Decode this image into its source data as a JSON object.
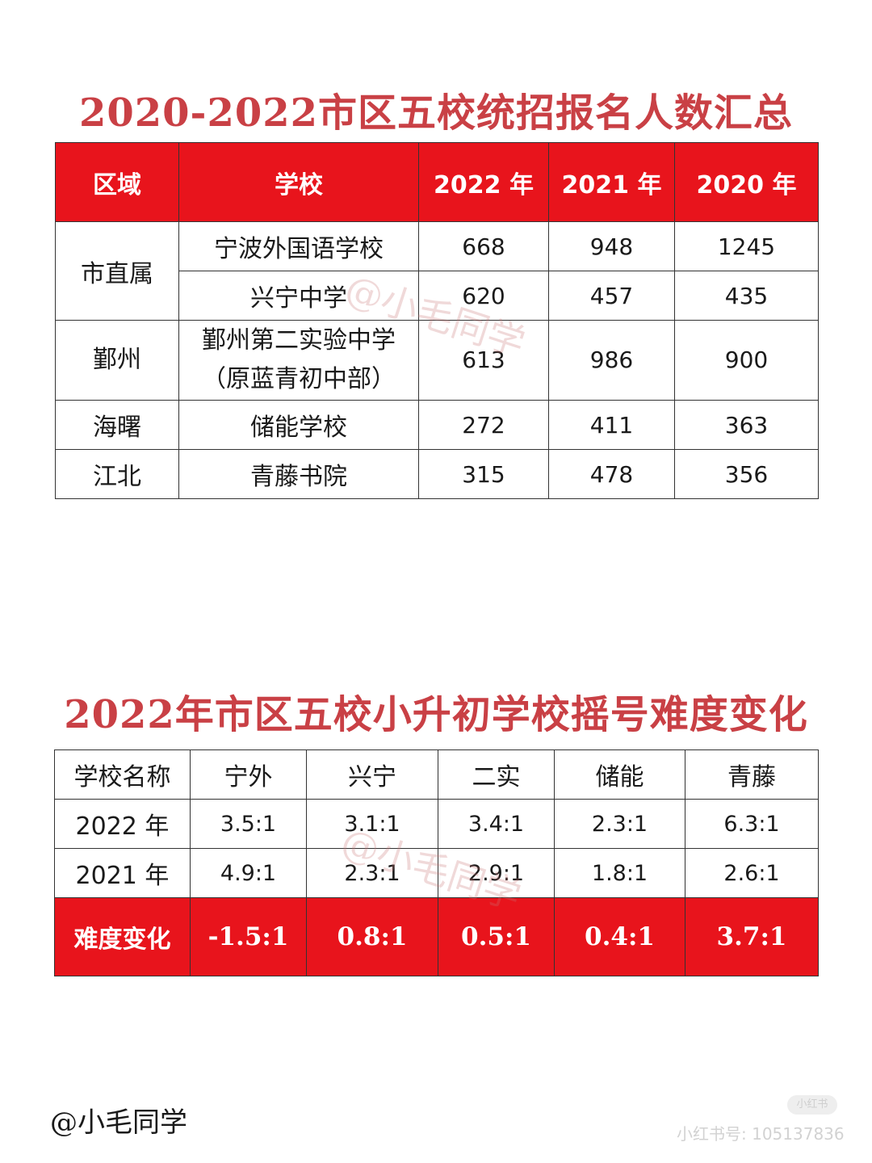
{
  "table1": {
    "title": "2020-2022市区五校统招报名人数汇总",
    "headers": [
      "区域",
      "学校",
      "2022 年",
      "2021 年",
      "2020 年"
    ],
    "groups": [
      {
        "region": "市直属",
        "schools": [
          {
            "name": "宁波外国语学校",
            "y2022": "668",
            "y2021": "948",
            "y2020": "1245"
          },
          {
            "name": "兴宁中学",
            "y2022": "620",
            "y2021": "457",
            "y2020": "435"
          }
        ]
      },
      {
        "region": "鄞州",
        "schools": [
          {
            "name_line1": "鄞州第二实验中学",
            "name_line2": "（原蓝青初中部）",
            "y2022": "613",
            "y2021": "986",
            "y2020": "900"
          }
        ]
      },
      {
        "region": "海曙",
        "schools": [
          {
            "name": "储能学校",
            "y2022": "272",
            "y2021": "411",
            "y2020": "363"
          }
        ]
      },
      {
        "region": "江北",
        "schools": [
          {
            "name": "青藤书院",
            "y2022": "315",
            "y2021": "478",
            "y2020": "356"
          }
        ]
      }
    ]
  },
  "table2": {
    "title": "2022年市区五校小升初学校摇号难度变化",
    "header_label": "学校名称",
    "schools": [
      "宁外",
      "兴宁",
      "二实",
      "储能",
      "青藤"
    ],
    "rows": [
      {
        "label": "2022 年",
        "values": [
          "3.5:1",
          "3.1:1",
          "3.4:1",
          "2.3:1",
          "6.3:1"
        ]
      },
      {
        "label": "2021 年",
        "values": [
          "4.9:1",
          "2.3:1",
          "2.9:1",
          "1.8:1",
          "2.6:1"
        ]
      }
    ],
    "change": {
      "label": "难度变化",
      "values": [
        "-1.5:1",
        "0.8:1",
        "0.5:1",
        "0.4:1",
        "3.7:1"
      ]
    }
  },
  "watermark": "@小毛同学",
  "footer": {
    "handle": "@小毛同学",
    "platform_badge": "小红书",
    "platform_id": "小红书号: 105137836"
  },
  "colors": {
    "header_red": "#e8141c",
    "title_red": "#c94045",
    "text": "#1a1a1a"
  }
}
